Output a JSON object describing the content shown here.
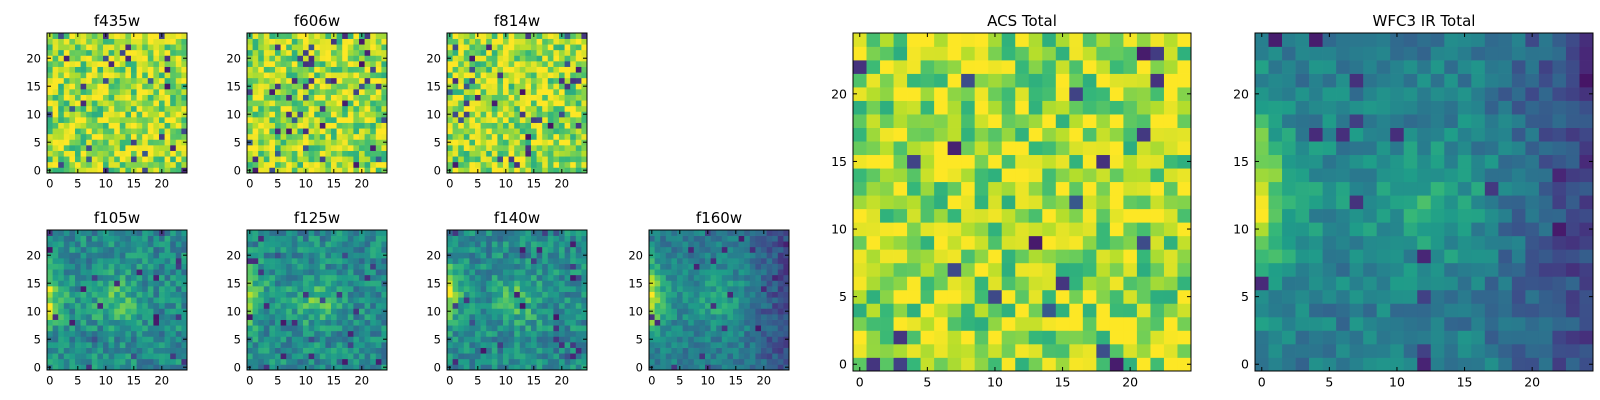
{
  "chart_data": [
    {
      "type": "heatmap",
      "title": "f435w",
      "xlabel": "",
      "ylabel": "",
      "grid_size": [
        25,
        25
      ],
      "xlim": [
        -0.5,
        24.5
      ],
      "ylim": [
        -0.5,
        24.5
      ],
      "xticks": [
        0,
        5,
        10,
        15,
        20
      ],
      "yticks": [
        0,
        5,
        10,
        15,
        20
      ],
      "colormap": "viridis",
      "grid": false,
      "texture": "uniform_noise",
      "seed": 11
    },
    {
      "type": "heatmap",
      "title": "f606w",
      "xlabel": "",
      "ylabel": "",
      "grid_size": [
        25,
        25
      ],
      "xlim": [
        -0.5,
        24.5
      ],
      "ylim": [
        -0.5,
        24.5
      ],
      "xticks": [
        0,
        5,
        10,
        15,
        20
      ],
      "yticks": [
        0,
        5,
        10,
        15,
        20
      ],
      "colormap": "viridis",
      "grid": false,
      "texture": "uniform_noise",
      "seed": 22
    },
    {
      "type": "heatmap",
      "title": "f814w",
      "xlabel": "",
      "ylabel": "",
      "grid_size": [
        25,
        25
      ],
      "xlim": [
        -0.5,
        24.5
      ],
      "ylim": [
        -0.5,
        24.5
      ],
      "xticks": [
        0,
        5,
        10,
        15,
        20
      ],
      "yticks": [
        0,
        5,
        10,
        15,
        20
      ],
      "colormap": "viridis",
      "grid": false,
      "texture": "uniform_noise",
      "seed": 33
    },
    {
      "type": "heatmap",
      "title": "f105w",
      "xlabel": "",
      "ylabel": "",
      "grid_size": [
        25,
        25
      ],
      "xlim": [
        -0.5,
        24.5
      ],
      "ylim": [
        -0.5,
        24.5
      ],
      "xticks": [
        0,
        5,
        10,
        15,
        20
      ],
      "yticks": [
        0,
        5,
        10,
        15,
        20
      ],
      "colormap": "viridis",
      "grid": false,
      "texture": "left_edge_central_blob",
      "seed": 44
    },
    {
      "type": "heatmap",
      "title": "f125w",
      "xlabel": "",
      "ylabel": "",
      "grid_size": [
        25,
        25
      ],
      "xlim": [
        -0.5,
        24.5
      ],
      "ylim": [
        -0.5,
        24.5
      ],
      "xticks": [
        0,
        5,
        10,
        15,
        20
      ],
      "yticks": [
        0,
        5,
        10,
        15,
        20
      ],
      "colormap": "viridis",
      "grid": false,
      "texture": "left_edge_central_blob",
      "seed": 55
    },
    {
      "type": "heatmap",
      "title": "f140w",
      "xlabel": "",
      "ylabel": "",
      "grid_size": [
        25,
        25
      ],
      "xlim": [
        -0.5,
        24.5
      ],
      "ylim": [
        -0.5,
        24.5
      ],
      "xticks": [
        0,
        5,
        10,
        15,
        20
      ],
      "yticks": [
        0,
        5,
        10,
        15,
        20
      ],
      "colormap": "viridis",
      "grid": false,
      "texture": "left_edge_central_blob",
      "seed": 66
    },
    {
      "type": "heatmap",
      "title": "f160w",
      "xlabel": "",
      "ylabel": "",
      "grid_size": [
        25,
        25
      ],
      "xlim": [
        -0.5,
        24.5
      ],
      "ylim": [
        -0.5,
        24.5
      ],
      "xticks": [
        0,
        5,
        10,
        15,
        20
      ],
      "yticks": [
        0,
        5,
        10,
        15,
        20
      ],
      "colormap": "viridis",
      "grid": false,
      "texture": "left_edge_dark_right",
      "seed": 77
    },
    {
      "type": "heatmap",
      "title": "ACS Total",
      "xlabel": "",
      "ylabel": "",
      "grid_size": [
        25,
        25
      ],
      "xlim": [
        -0.5,
        24.5
      ],
      "ylim": [
        -0.5,
        24.5
      ],
      "xticks": [
        0,
        5,
        10,
        15,
        20
      ],
      "yticks": [
        0,
        5,
        10,
        15,
        20
      ],
      "colormap": "viridis",
      "grid": false,
      "texture": "uniform_noise",
      "seed": 88
    },
    {
      "type": "heatmap",
      "title": "WFC3 IR Total",
      "xlabel": "",
      "ylabel": "",
      "grid_size": [
        25,
        25
      ],
      "xlim": [
        -0.5,
        24.5
      ],
      "ylim": [
        -0.5,
        24.5
      ],
      "xticks": [
        0,
        5,
        10,
        15,
        20
      ],
      "yticks": [
        0,
        5,
        10,
        15,
        20
      ],
      "colormap": "viridis",
      "grid": false,
      "texture": "left_edge_dark_right",
      "seed": 99
    }
  ]
}
